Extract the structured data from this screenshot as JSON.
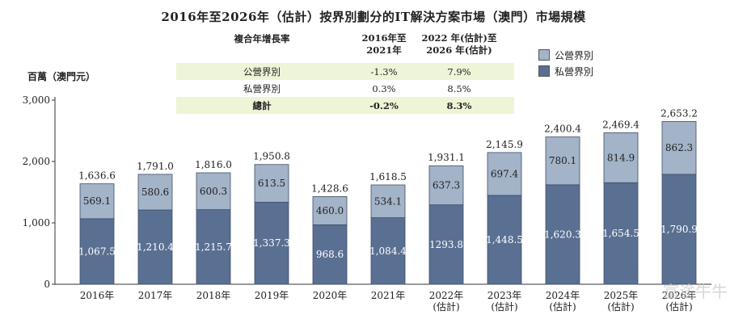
{
  "title": "2016年至2026年（估計）按界別劃分的IT解決方案市場（澳門）市場規模",
  "unit_label": "百萬（澳門元）",
  "cagr_table": {
    "header": [
      "複合年增長率",
      "2016年至\n2021年",
      "2022 年(估計)至\n2026 年(估計)"
    ],
    "rows": [
      {
        "label": "公營界別",
        "v1": "-1.3%",
        "v2": "7.9%",
        "shaded": true,
        "bold": false
      },
      {
        "label": "私營界別",
        "v1": "0.3%",
        "v2": "8.5%",
        "shaded": false,
        "bold": false
      },
      {
        "label": "總計",
        "v1": "-0.2%",
        "v2": "8.3%",
        "shaded": true,
        "bold": true
      }
    ]
  },
  "watermark": "富途牛牛",
  "chart_data": {
    "type": "bar",
    "stacked": true,
    "categories": [
      "2016年",
      "2017年",
      "2018年",
      "2019年",
      "2020年",
      "2021年",
      "2022年\n(估計)",
      "2023年\n(估計)",
      "2024年\n(估計)",
      "2025年\n(估計)",
      "2026年\n(估計)"
    ],
    "series": [
      {
        "name": "私營界別",
        "color": "#5a7092",
        "values": [
          1067.5,
          1210.4,
          1215.7,
          1337.3,
          968.6,
          1084.4,
          1293.8,
          1448.5,
          1620.3,
          1654.5,
          1790.9
        ],
        "labels": [
          "1,067.5",
          "1,210.4",
          "1,215.7",
          "1,337.3",
          "968.6",
          "1,084.4",
          "1293.8",
          "1,448.5",
          "1,620.3",
          "1,654.5",
          "1,790.9"
        ]
      },
      {
        "name": "公營界別",
        "color": "#a3b3c8",
        "values": [
          569.1,
          580.6,
          600.3,
          613.5,
          460.0,
          534.1,
          637.3,
          697.4,
          780.1,
          814.9,
          862.3
        ],
        "labels": [
          "569.1",
          "580.6",
          "600.3",
          "613.5",
          "460.0",
          "534.1",
          "637.3",
          "697.4",
          "780.1",
          "814.9",
          "862.3"
        ]
      }
    ],
    "totals": [
      "1,636.6",
      "1,791.0",
      "1,816.0",
      "1,950.8",
      "1,428.6",
      "1,618.5",
      "1,931.1",
      "2,145.9",
      "2,400.4",
      "2,469.4",
      "2,653.2"
    ],
    "yticks": [
      0,
      1000,
      2000,
      3000
    ],
    "ytick_labels": [
      "0",
      "1,000",
      "2,000",
      "3,000"
    ],
    "ylim": [
      0,
      3000
    ],
    "legend": "top-right"
  }
}
